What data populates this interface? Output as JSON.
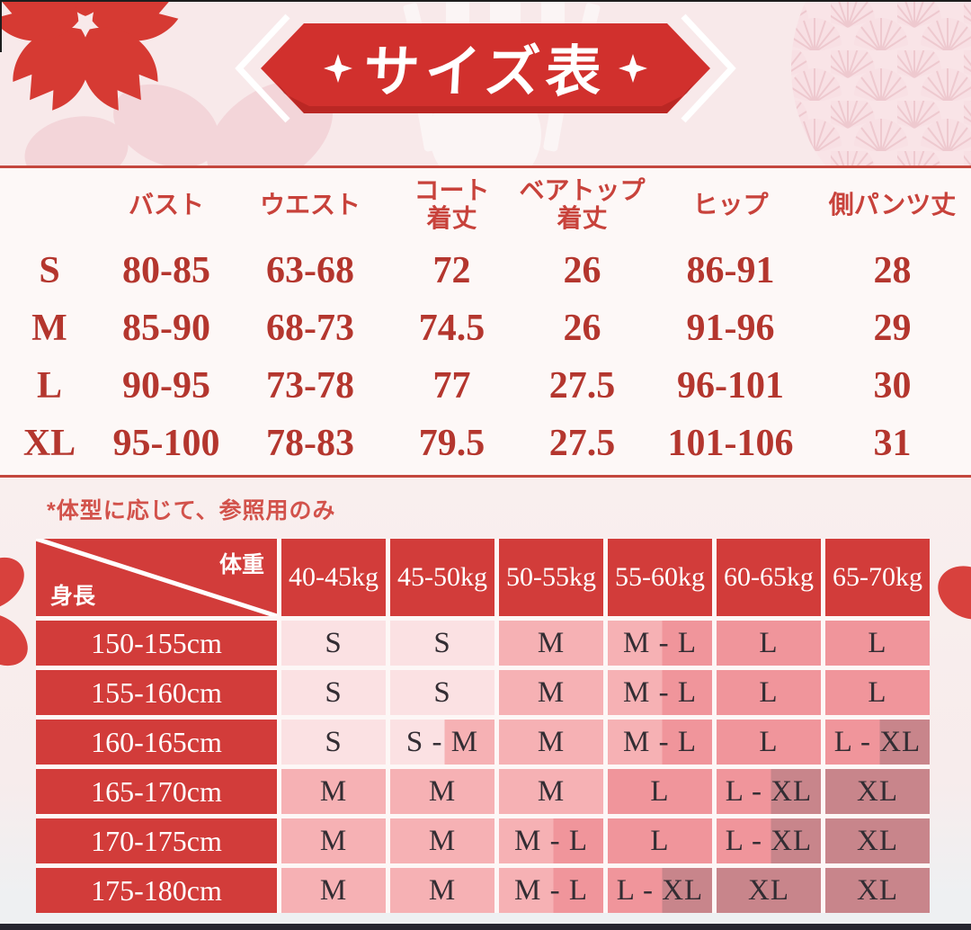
{
  "banner": {
    "title": "サイズ表"
  },
  "chart_data": [
    {
      "type": "table",
      "title": "サイズ表",
      "columns": [
        "",
        "バスト",
        "ウエスト",
        "コート\n着丈",
        "ベアトップ\n着丈",
        "ヒップ",
        "側パンツ丈"
      ],
      "rows": [
        [
          "S",
          "80-85",
          "63-68",
          "72",
          "26",
          "86-91",
          "28"
        ],
        [
          "M",
          "85-90",
          "68-73",
          "74.5",
          "26",
          "91-96",
          "29"
        ],
        [
          "L",
          "90-95",
          "73-78",
          "77",
          "27.5",
          "96-101",
          "30"
        ],
        [
          "XL",
          "95-100",
          "78-83",
          "79.5",
          "27.5",
          "101-106",
          "31"
        ]
      ]
    },
    {
      "type": "table",
      "note": "*体型に応じて、参照用のみ",
      "corner": {
        "top_right": "体重",
        "bottom_left": "身長"
      },
      "columns": [
        "40-45kg",
        "45-50kg",
        "50-55kg",
        "55-60kg",
        "60-65kg",
        "65-70kg"
      ],
      "row_labels": [
        "150-155cm",
        "155-160cm",
        "160-165cm",
        "165-170cm",
        "170-175cm",
        "175-180cm"
      ],
      "rows": [
        [
          "S",
          "S",
          "M",
          "M - L",
          "L",
          "L"
        ],
        [
          "S",
          "S",
          "M",
          "M - L",
          "L",
          "L"
        ],
        [
          "S",
          "S - M",
          "M",
          "M - L",
          "L",
          "L - XL"
        ],
        [
          "M",
          "M",
          "M",
          "L",
          "L - XL",
          "XL"
        ],
        [
          "M",
          "M",
          "M - L",
          "L",
          "L - XL",
          "XL"
        ],
        [
          "M",
          "M",
          "M - L",
          "L - XL",
          "XL",
          "XL"
        ]
      ]
    }
  ],
  "colors": {
    "banner_red": "#d1302d",
    "separator_red": "#c4473e",
    "header_cell_red": "#d23c3a",
    "size_table_text": "#b4362e",
    "note_red": "#d2524b",
    "size_fill": {
      "S": "#fbe1e3",
      "M": "#f6b1b4",
      "L": "#f0959b",
      "XL": "#c8858b"
    }
  }
}
